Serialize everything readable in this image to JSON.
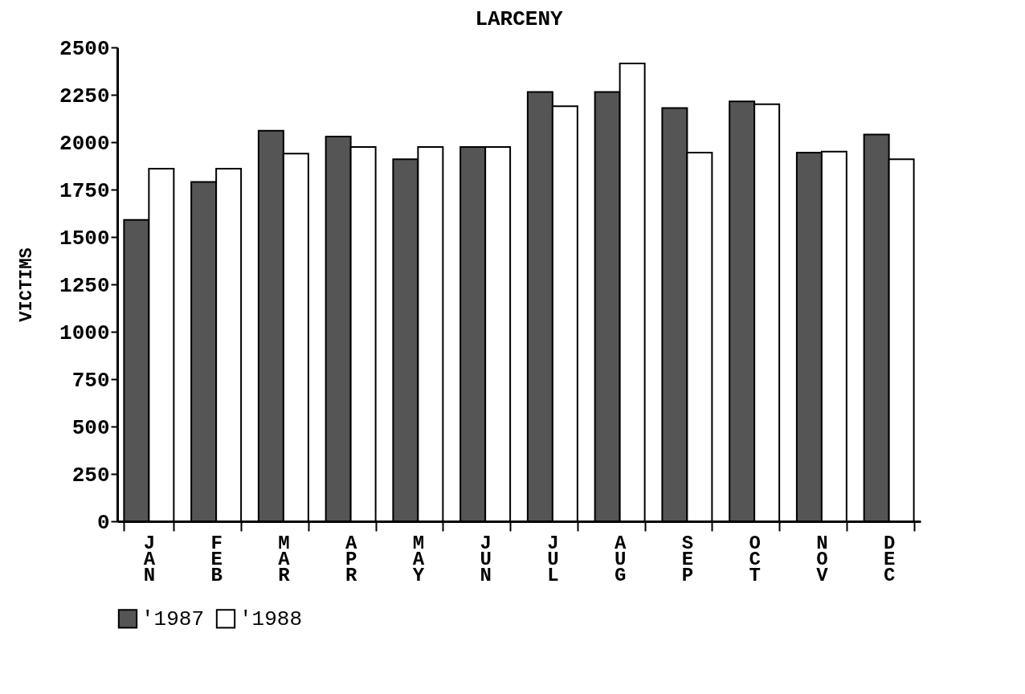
{
  "chart_data": {
    "type": "bar",
    "title": "LARCENY",
    "ylabel": "VICTIMS",
    "categories": [
      "JAN",
      "FEB",
      "MAR",
      "APR",
      "MAY",
      "JUN",
      "JUL",
      "AUG",
      "SEP",
      "OCT",
      "NOV",
      "DEC"
    ],
    "series": [
      {
        "name": "'1987",
        "color": "#555555",
        "values": [
          1590,
          1790,
          2060,
          2030,
          1910,
          1975,
          2265,
          2265,
          2180,
          2215,
          1945,
          2040
        ]
      },
      {
        "name": "'1988",
        "color": "#ffffff",
        "values": [
          1860,
          1860,
          1940,
          1975,
          1975,
          1975,
          2190,
          2415,
          1945,
          2200,
          1950,
          1910
        ]
      }
    ],
    "ylim": [
      0,
      2500
    ],
    "yticks": [
      0,
      250,
      500,
      750,
      1000,
      1250,
      1500,
      1750,
      2000,
      2250,
      2500
    ],
    "grid": false,
    "legend": "bottom"
  }
}
